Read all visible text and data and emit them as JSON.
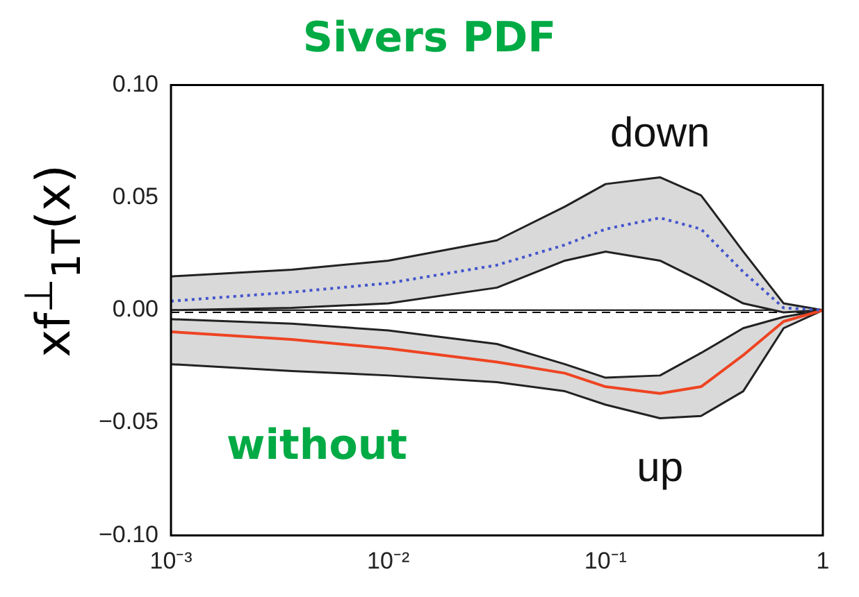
{
  "chart_data": {
    "type": "line",
    "title": "Sivers PDF",
    "ylabel": "xf$^{⊥}$$_{1T}$(x)",
    "annotations": [
      "without"
    ],
    "x": [
      0.001,
      0.0036,
      0.01,
      0.0316,
      0.065,
      0.1,
      0.178,
      0.275,
      0.43,
      0.66,
      1
    ],
    "series": [
      {
        "name": "down",
        "color": "#4455cc",
        "line_style": "dotted",
        "values": [
          0.004,
          0.008,
          0.012,
          0.02,
          0.029,
          0.036,
          0.041,
          0.036,
          0.017,
          0.001,
          0
        ],
        "upper": [
          0.015,
          0.018,
          0.022,
          0.031,
          0.046,
          0.056,
          0.059,
          0.051,
          0.026,
          0.003,
          0
        ],
        "lower": [
          0.0,
          0.001,
          0.003,
          0.01,
          0.022,
          0.026,
          0.022,
          0.013,
          0.003,
          -0.001,
          0
        ]
      },
      {
        "name": "up",
        "color": "#ee4422",
        "line_style": "solid",
        "values": [
          -0.0096,
          -0.013,
          -0.017,
          -0.023,
          -0.028,
          -0.034,
          -0.037,
          -0.034,
          -0.02,
          -0.005,
          0
        ],
        "upper": [
          -0.004,
          -0.006,
          -0.009,
          -0.015,
          -0.024,
          -0.03,
          -0.029,
          -0.019,
          -0.008,
          -0.003,
          0
        ],
        "lower": [
          -0.024,
          -0.027,
          -0.029,
          -0.032,
          -0.036,
          -0.042,
          -0.048,
          -0.047,
          -0.036,
          -0.008,
          0
        ]
      },
      {
        "color": "#222222",
        "line_style": "solid",
        "values": [
          0.015,
          0.018,
          0.022,
          0.031,
          0.046,
          0.056,
          0.059,
          0.051,
          0.026,
          0.003,
          0
        ]
      },
      {
        "color": "#222222",
        "line_style": "solid",
        "values": [
          0.0,
          0.001,
          0.003,
          0.01,
          0.022,
          0.026,
          0.022,
          0.013,
          0.003,
          -0.001,
          0
        ]
      },
      {
        "color": "#222222",
        "line_style": "solid",
        "values": [
          -0.004,
          -0.006,
          -0.009,
          -0.015,
          -0.024,
          -0.03,
          -0.029,
          -0.019,
          -0.008,
          -0.003,
          0
        ]
      },
      {
        "color": "#222222",
        "line_style": "solid",
        "values": [
          -0.024,
          -0.027,
          -0.029,
          -0.032,
          -0.036,
          -0.042,
          -0.048,
          -0.047,
          -0.036,
          -0.008,
          0
        ]
      }
    ],
    "log": "x",
    "xlim": [
      0.001,
      1
    ],
    "xticks": [
      {
        "value": 0.001,
        "label": "10⁻³"
      },
      {
        "value": 0.01,
        "label": "10⁻²"
      },
      {
        "value": 0.1,
        "label": "10⁻¹"
      },
      1
    ],
    "ylim": [
      -0.1,
      0.1
    ],
    "yticks": [
      {
        "value": -0.1,
        "label": "−0.10"
      },
      {
        "value": -0.05,
        "label": "−0.05"
      },
      {
        "value": 0,
        "label": "0.00"
      },
      {
        "value": 0.05,
        "label": "0.05"
      },
      {
        "value": 0.1,
        "label": "0.10"
      }
    ],
    "ref_lines": [
      {
        "axis": "y",
        "value": 0,
        "line_style": "solid",
        "color": "#000000"
      },
      {
        "axis": "y",
        "value": -0.001,
        "line_style": "dashed",
        "color": "#000000"
      }
    ],
    "grid": false,
    "legend": false,
    "marker": "none"
  }
}
